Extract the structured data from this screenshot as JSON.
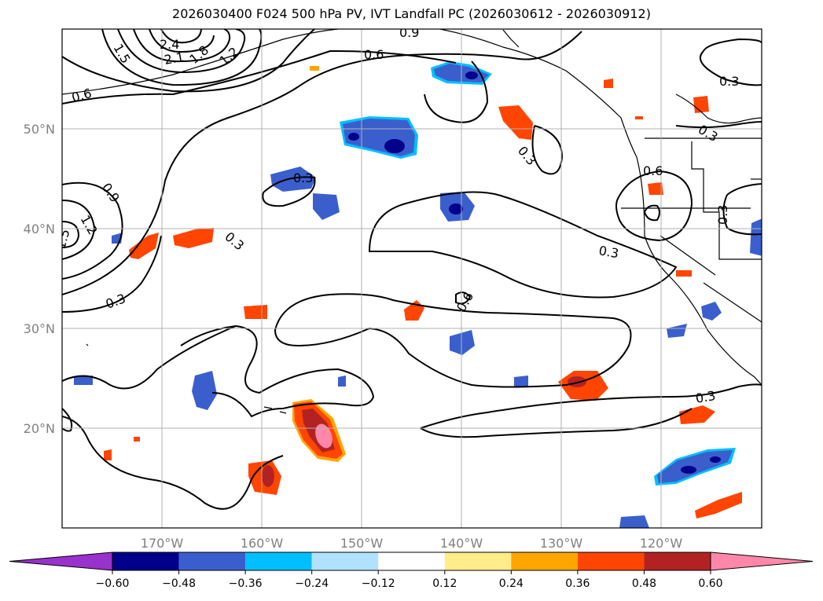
{
  "title": "2026030400 F024 500 hPa PV, IVT Landfall PC (2026030612 - 2026030912)",
  "map": {
    "projection": "PlateCarree",
    "lon_range": [
      -180,
      -110
    ],
    "lat_range": [
      10,
      60
    ],
    "lon_ticks": [
      {
        "value": -170,
        "label": "170°W"
      },
      {
        "value": -160,
        "label": "160°W"
      },
      {
        "value": -150,
        "label": "150°W"
      },
      {
        "value": -140,
        "label": "140°W"
      },
      {
        "value": -130,
        "label": "130°W"
      },
      {
        "value": -120,
        "label": "120°W"
      }
    ],
    "lat_ticks": [
      {
        "value": 20,
        "label": "20°N"
      },
      {
        "value": 30,
        "label": "30°N"
      },
      {
        "value": 40,
        "label": "40°N"
      },
      {
        "value": 50,
        "label": "50°N"
      }
    ],
    "gridlines": true,
    "coastlines": true,
    "state_borders": true
  },
  "contour_labels": [
    "0.3",
    "0.6",
    "0.9",
    "1.2",
    "1.5",
    "1.8",
    "2.1",
    "2.4"
  ],
  "colorbar": {
    "extend": "both",
    "tick_labels": [
      "−0.60",
      "−0.48",
      "−0.36",
      "−0.24",
      "−0.12",
      "0.12",
      "0.24",
      "0.36",
      "0.48",
      "0.60"
    ],
    "colors": [
      "#9932cc",
      "#00008b",
      "#3a5fcd",
      "#00bfff",
      "#b0e2ff",
      "#ffffff",
      "#ffec8b",
      "#ffa500",
      "#ff4500",
      "#b22222",
      "#ff88aa"
    ]
  }
}
